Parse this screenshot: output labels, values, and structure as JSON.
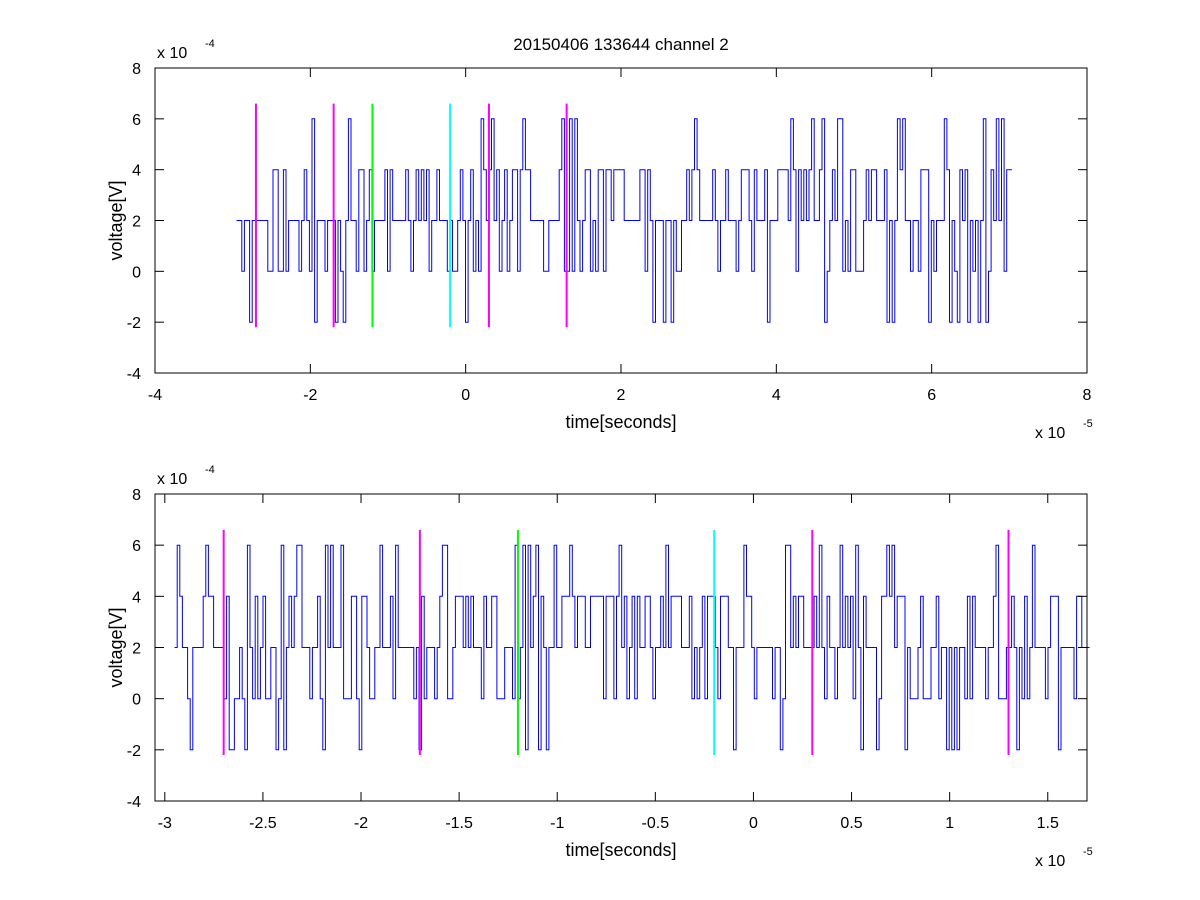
{
  "chart_data": [
    {
      "type": "line",
      "title": "20150406 133644 channel 2",
      "xlabel": "time[seconds]",
      "ylabel": "voltage[V]",
      "x_exponent_label": "x 10",
      "x_exponent": "-5",
      "y_exponent_label": "x 10",
      "y_exponent": "-4",
      "xlim": [
        -4,
        8
      ],
      "ylim": [
        -4,
        8
      ],
      "x_ticks": [
        -4,
        -2,
        0,
        2,
        4,
        6,
        8
      ],
      "x_tick_labels": [
        "-4",
        "-2",
        "0",
        "2",
        "4",
        "6",
        "8"
      ],
      "y_ticks": [
        -4,
        -2,
        0,
        2,
        4,
        6,
        8
      ],
      "y_tick_labels": [
        "-4",
        "-2",
        "0",
        "2",
        "4",
        "6",
        "8"
      ],
      "grid": false,
      "series": [
        {
          "color": "#0000ff",
          "x_range": [
            -2.95,
            7.0
          ],
          "level_step": 2,
          "baseline": 2,
          "seed": 11
        }
      ],
      "markers": [
        {
          "x": -2.7,
          "ymin": -2.2,
          "ymax": 6.6,
          "color": "#ff00ff"
        },
        {
          "x": -1.7,
          "ymin": -2.2,
          "ymax": 6.6,
          "color": "#ff00ff"
        },
        {
          "x": -1.2,
          "ymin": -2.2,
          "ymax": 6.6,
          "color": "#00ff00"
        },
        {
          "x": -0.2,
          "ymin": -2.2,
          "ymax": 6.6,
          "color": "#00ffff"
        },
        {
          "x": 0.3,
          "ymin": -2.2,
          "ymax": 6.6,
          "color": "#ff00ff"
        },
        {
          "x": 1.3,
          "ymin": -2.2,
          "ymax": 6.6,
          "color": "#ff00ff"
        }
      ]
    },
    {
      "type": "line",
      "title": "",
      "xlabel": "time[seconds]",
      "ylabel": "voltage[V]",
      "x_exponent_label": "x 10",
      "x_exponent": "-5",
      "y_exponent_label": "x 10",
      "y_exponent": "-4",
      "xlim": [
        -3.05,
        1.7
      ],
      "ylim": [
        -4,
        8
      ],
      "x_ticks": [
        -3,
        -2.5,
        -2,
        -1.5,
        -1,
        -0.5,
        0,
        0.5,
        1,
        1.5
      ],
      "x_tick_labels": [
        "-3",
        "-2.5",
        "-2",
        "-1.5",
        "-1",
        "-0.5",
        "0",
        "0.5",
        "1",
        "1.5"
      ],
      "y_ticks": [
        -4,
        -2,
        0,
        2,
        4,
        6,
        8
      ],
      "y_tick_labels": [
        "-4",
        "-2",
        "0",
        "2",
        "4",
        "6",
        "8"
      ],
      "grid": false,
      "series": [
        {
          "color": "#0000ff",
          "x_range": [
            -2.95,
            1.7
          ],
          "level_step": 2,
          "baseline": 2,
          "seed": 29
        }
      ],
      "markers": [
        {
          "x": -2.7,
          "ymin": -2.2,
          "ymax": 6.6,
          "color": "#ff00ff"
        },
        {
          "x": -1.7,
          "ymin": -2.2,
          "ymax": 6.6,
          "color": "#ff00ff"
        },
        {
          "x": -1.2,
          "ymin": -2.2,
          "ymax": 6.6,
          "color": "#00ff00"
        },
        {
          "x": -0.2,
          "ymin": -2.2,
          "ymax": 6.6,
          "color": "#00ffff"
        },
        {
          "x": 0.3,
          "ymin": -2.2,
          "ymax": 6.6,
          "color": "#ff00ff"
        },
        {
          "x": 1.3,
          "ymin": -2.2,
          "ymax": 6.6,
          "color": "#ff00ff"
        }
      ]
    }
  ]
}
